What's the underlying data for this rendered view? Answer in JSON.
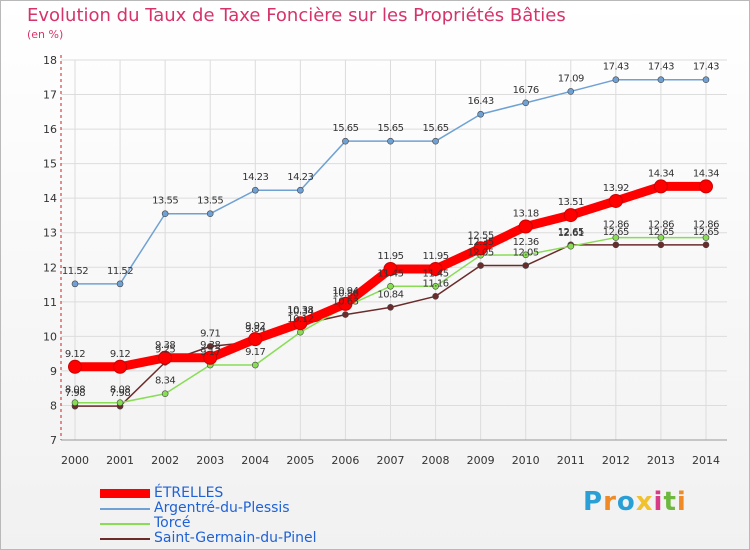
{
  "chart_data": {
    "type": "line",
    "title": "Evolution du Taux de Taxe Foncière sur les Propriétés Bâties",
    "subtitle": "(en %)",
    "xlabel": "",
    "ylabel": "",
    "categories": [
      "2000",
      "2001",
      "2002",
      "2003",
      "2004",
      "2005",
      "2006",
      "2007",
      "2008",
      "2009",
      "2010",
      "2011",
      "2012",
      "2013",
      "2014"
    ],
    "ylim": [
      7,
      18
    ],
    "yticks": [
      "7",
      "8",
      "9",
      "10",
      "11",
      "12",
      "13",
      "14",
      "15",
      "16",
      "17",
      "18"
    ],
    "series": [
      {
        "name": "ÉTRELLES",
        "color": "#ff0000",
        "values": [
          9.12,
          9.12,
          9.38,
          9.38,
          9.92,
          10.38,
          10.94,
          11.95,
          11.95,
          12.55,
          13.18,
          13.51,
          13.92,
          14.34,
          14.34
        ],
        "labels": [
          "9.12",
          "9.12",
          "9.38",
          "9.38",
          "9.92",
          "10.38",
          "10.94",
          "11.95",
          "11.95",
          "12.55",
          "13.18",
          "13.51",
          "13.92",
          "14.34",
          "14.34"
        ]
      },
      {
        "name": "Argentré-du-Plessis",
        "color": "#6fa1d4",
        "values": [
          11.52,
          11.52,
          13.55,
          13.55,
          14.23,
          14.23,
          15.65,
          15.65,
          15.65,
          16.43,
          16.76,
          17.09,
          17.43,
          17.43,
          17.43
        ],
        "labels": [
          "11.52",
          "11.52",
          "13.55",
          "13.55",
          "14.23",
          "14.23",
          "15.65",
          "15.65",
          "15.65",
          "16.43",
          "16.76",
          "17.09",
          "17.43",
          "17.43",
          "17.43"
        ]
      },
      {
        "name": "Torcé",
        "color": "#88dd55",
        "values": [
          8.08,
          8.08,
          8.34,
          9.17,
          9.17,
          10.12,
          10.86,
          11.45,
          11.45,
          12.35,
          12.36,
          12.61,
          12.86,
          12.86,
          12.86
        ],
        "labels": [
          "8.08",
          "8.08",
          "8.34",
          "9.17",
          "9.17",
          "10.12",
          "10.86",
          "11.45",
          "11.45",
          "12.35",
          "12.36",
          "12.61",
          "12.86",
          "12.86",
          "12.86"
        ]
      },
      {
        "name": "Saint-Germain-du-Pinel",
        "color": "#6b2b2b",
        "values": [
          7.98,
          7.98,
          9.25,
          9.71,
          9.84,
          10.34,
          10.63,
          10.84,
          11.16,
          12.05,
          12.05,
          12.65,
          12.65,
          12.65,
          12.65
        ],
        "labels": [
          "7.98",
          "7.98",
          "9.25",
          "9.71",
          "9.84",
          "10.34",
          "10.63",
          "10.84",
          "11.16",
          "12.05",
          "12.05",
          "12.65",
          "12.65",
          "12.65",
          "12.65"
        ]
      }
    ]
  },
  "logo": {
    "letters": [
      "P",
      "r",
      "o",
      "x",
      "i",
      "t",
      "i"
    ],
    "colors": [
      "#2a9fd6",
      "#f08a24",
      "#2a9fd6",
      "#f2c12e",
      "#d93a86",
      "#6fb83f",
      "#f08a24"
    ]
  }
}
